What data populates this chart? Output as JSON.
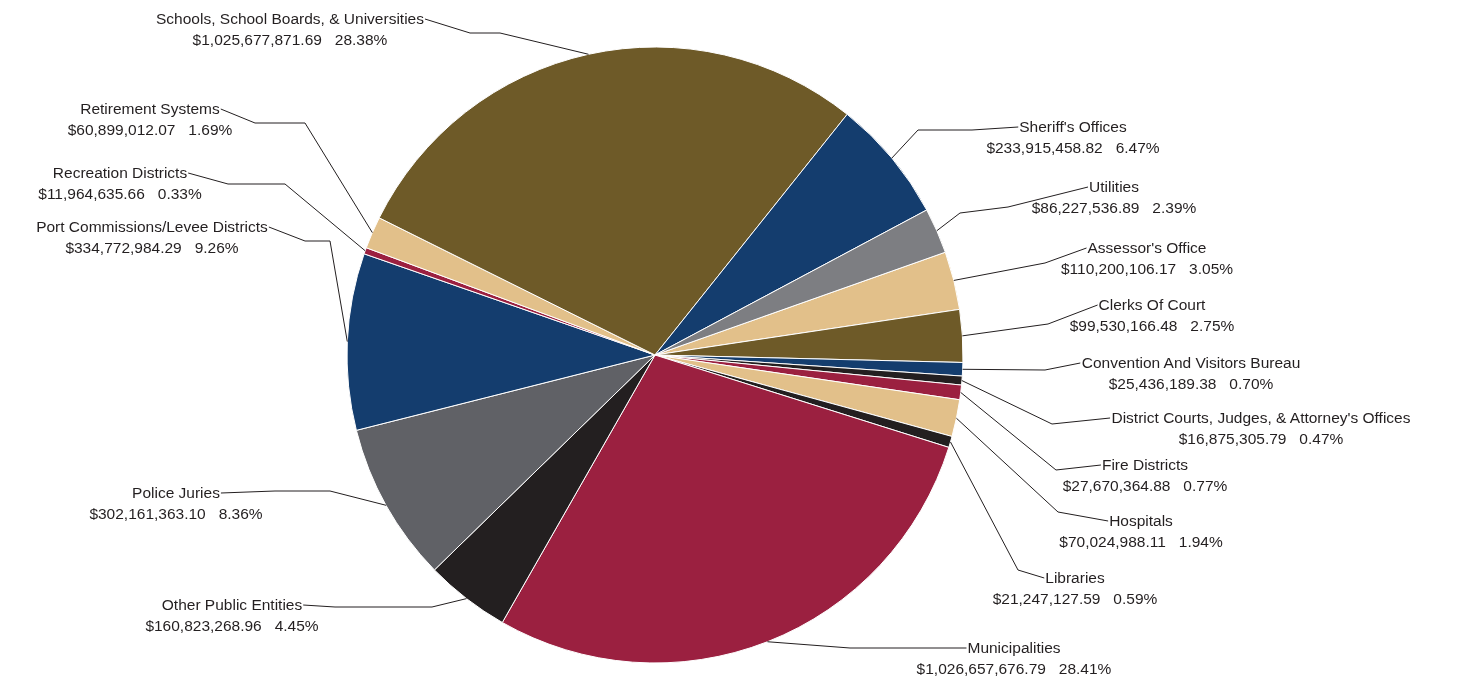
{
  "chart_data": {
    "type": "pie",
    "categories": [
      "Assessor's Office",
      "Clerks Of Court",
      "Convention And Visitors Bureau",
      "District Courts, Judges, & Attorney's Offices",
      "Fire Districts",
      "Hospitals",
      "Libraries",
      "Municipalities",
      "Other Public Entities",
      "Police Juries",
      "Port Commissions/Levee Districts",
      "Recreation Districts",
      "Retirement Systems",
      "Schools, School Boards, & Universities",
      "Sheriff's Offices",
      "Utilities"
    ],
    "values": [
      110200106.17,
      99530166.48,
      25436189.38,
      16875305.79,
      27670364.88,
      70024988.11,
      21247127.59,
      1026657676.79,
      160823268.96,
      302161363.1,
      334772984.29,
      11964635.66,
      60899012.07,
      1025677871.69,
      233915458.82,
      86227536.89
    ],
    "colors": [
      "#e2c08a",
      "#6e5a28",
      "#143d6e",
      "#231f20",
      "#9b2040",
      "#e2c08a",
      "#231f20",
      "#9b2040",
      "#231f20",
      "#606166",
      "#143d6e",
      "#9b2040",
      "#e2c08a",
      "#6e5a28",
      "#143d6e",
      "#7d7e82"
    ],
    "value_labels": [
      "$110,200,106.17   3.05%",
      "$99,530,166.48   2.75%",
      "$25,436,189.38   0.70%",
      "$16,875,305.79   0.47%",
      "$27,670,364.88   0.77%",
      "$70,024,988.11   1.94%",
      "$21,247,127.59   0.59%",
      "$1,026,657,676.79   28.41%",
      "$160,823,268.96   4.45%",
      "$302,161,363.10   8.36%",
      "$334,772,984.29   9.26%",
      "$11,964,635.66   0.33%",
      "$60,899,012.07   1.69%",
      "$1,025,677,871.69   28.38%",
      "$233,915,458.82   6.47%",
      "$86,227,536.89   2.39%"
    ]
  }
}
